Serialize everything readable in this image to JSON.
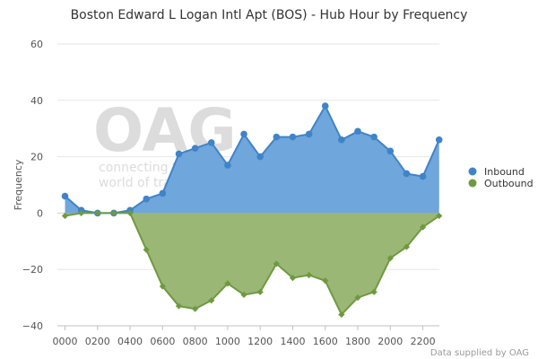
{
  "chart_data": {
    "type": "area",
    "title": "Boston Edward L Logan Intl Apt (BOS) - Hub Hour by Frequency",
    "ylabel": "Frequency",
    "xlabel": "",
    "ylim": [
      -40,
      60
    ],
    "yticks": [
      -40,
      -20,
      0,
      20,
      40,
      60
    ],
    "xtick_labels": [
      "0000",
      "0200",
      "0400",
      "0600",
      "0800",
      "1000",
      "1200",
      "1400",
      "1600",
      "1800",
      "2000",
      "2200"
    ],
    "x": [
      "0000",
      "0100",
      "0200",
      "0300",
      "0400",
      "0500",
      "0600",
      "0700",
      "0800",
      "0900",
      "1000",
      "1100",
      "1200",
      "1300",
      "1400",
      "1500",
      "1600",
      "1700",
      "1800",
      "1900",
      "2000",
      "2100",
      "2200",
      "2300"
    ],
    "series": [
      {
        "name": "Inbound",
        "color": "#3f84c8",
        "fill": "#6fa6db",
        "values": [
          6,
          1,
          0,
          0,
          1,
          5,
          7,
          21,
          23,
          25,
          17,
          28,
          20,
          27,
          27,
          28,
          38,
          26,
          29,
          27,
          22,
          14,
          13,
          26
        ]
      },
      {
        "name": "Outbound",
        "color": "#6e9a3f",
        "fill": "#9ab775",
        "values": [
          -1,
          0,
          0,
          0,
          0,
          -13,
          -26,
          -33,
          -34,
          -31,
          -25,
          -29,
          -28,
          -18,
          -23,
          -22,
          -24,
          -36,
          -30,
          -28,
          -16,
          -12,
          -5,
          -1
        ]
      }
    ],
    "grid": true,
    "legend": "right",
    "watermark": {
      "logo": "OAG",
      "line1": "connecting the",
      "line2": "world of travel"
    },
    "credit": "Data supplied by OAG"
  }
}
